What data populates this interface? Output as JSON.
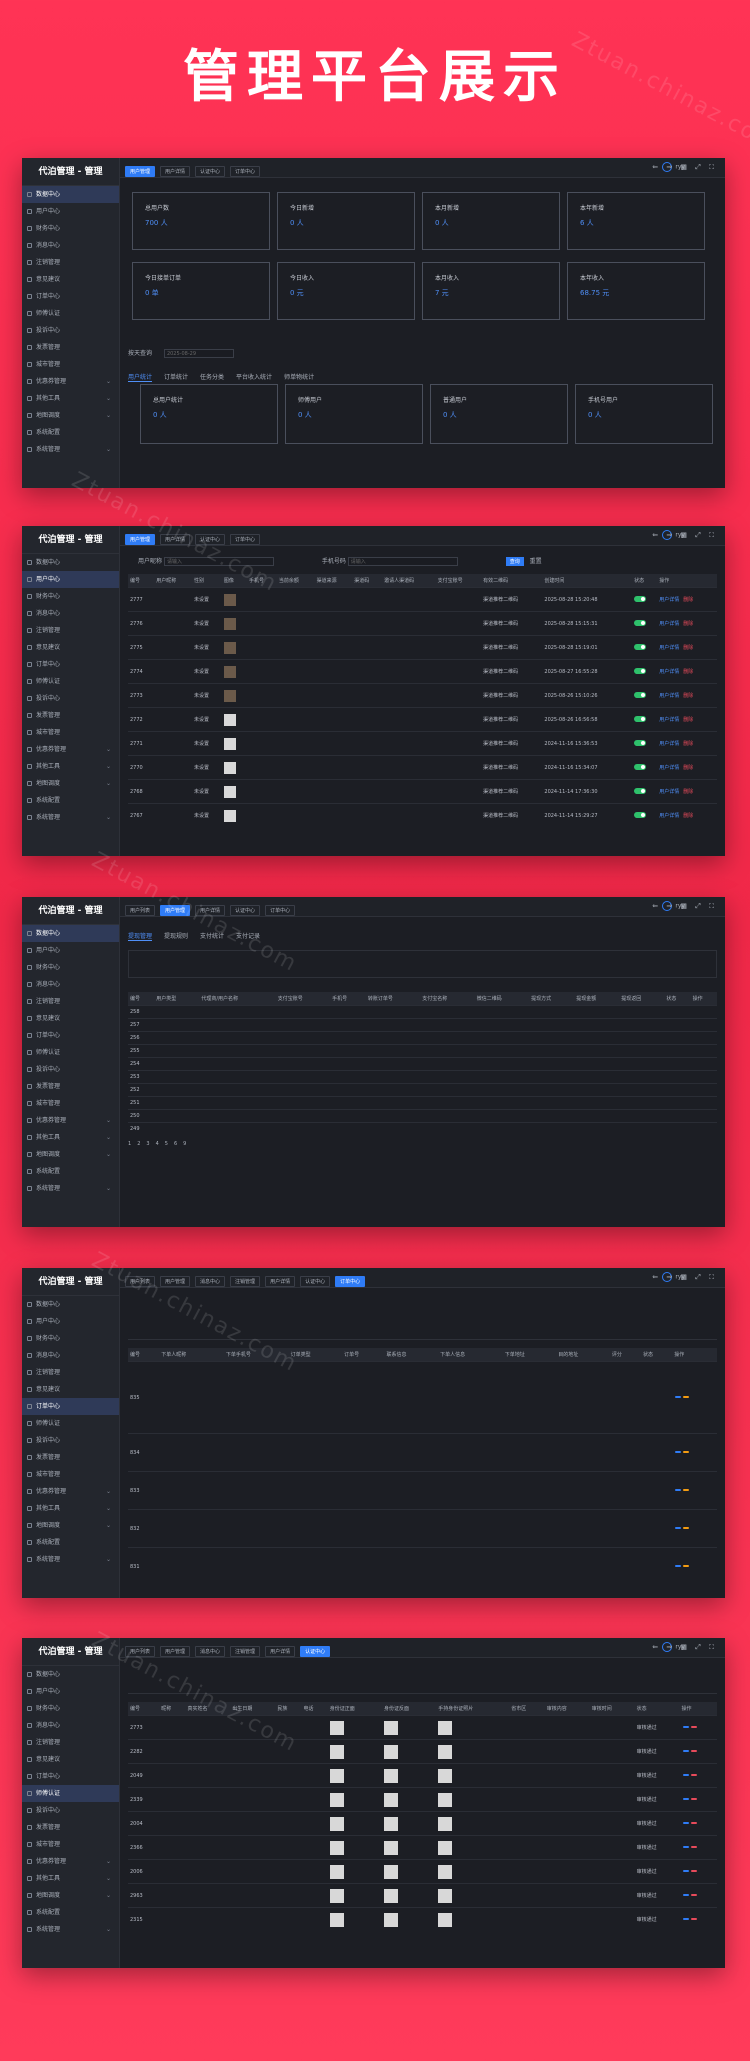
{
  "title": "管理平台展示",
  "logo": "代泊管理 - 管理",
  "user": "ryy",
  "right_icons": "⇐ ⇒ ▦ ⤢ ⛶",
  "sidebar": [
    "数据中心",
    "用户中心",
    "财务中心",
    "消息中心",
    "注销管理",
    "意见建议",
    "订单中心",
    "师傅认证",
    "投诉中心",
    "发票管理",
    "城市管理",
    "优惠券管理",
    "其他工具",
    "地图调度",
    "系统配置",
    "系统管理"
  ],
  "s1": {
    "tabs": [
      "用户管理",
      "用户详情",
      "认证中心",
      "订单中心"
    ],
    "cards": [
      {
        "l": "总用户数",
        "v": "700 人"
      },
      {
        "l": "今日新增",
        "v": "0 人"
      },
      {
        "l": "本月新增",
        "v": "0 人"
      },
      {
        "l": "本年新增",
        "v": "6 人"
      },
      {
        "l": "今日接单订单",
        "v": "0 单"
      },
      {
        "l": "今日收入",
        "v": "0 元"
      },
      {
        "l": "本月收入",
        "v": "7 元"
      },
      {
        "l": "本年收入",
        "v": "68.75 元"
      }
    ],
    "date_label": "按天查询",
    "date": "2025-08-29",
    "subtabs": [
      "用户统计",
      "订单统计",
      "任务分类",
      "平台收入统计",
      "师单物统计"
    ],
    "cards2": [
      {
        "l": "总用户统计",
        "v": "0 人"
      },
      {
        "l": "师傅用户",
        "v": "0 人"
      },
      {
        "l": "普通用户",
        "v": "0 人"
      },
      {
        "l": "手机号用户",
        "v": "0 人"
      }
    ]
  },
  "s2": {
    "tabs": [
      "用户管理",
      "用户详情",
      "认证中心",
      "订单中心"
    ],
    "f1": "用户昵称",
    "f1p": "请输入",
    "f2": "手机号码",
    "f2p": "请输入",
    "search": "查询",
    "reset": "重置",
    "cols": [
      "编号",
      "用户昵称",
      "性别",
      "图像",
      "手机号",
      "当前余额",
      "渠道来源",
      "渠道码",
      "邀请人渠道码",
      "支付宝账号",
      "有效二维码",
      "创建时间",
      "状态",
      "操作"
    ],
    "rows": [
      [
        "2777",
        "未设置",
        "渠道推荐二维码",
        "2025-08-28 15:20:48"
      ],
      [
        "2776",
        "未设置",
        "渠道推荐二维码",
        "2025-08-28 15:15:31"
      ],
      [
        "2775",
        "未设置",
        "渠道推荐二维码",
        "2025-08-28 15:19:01"
      ],
      [
        "2774",
        "未设置",
        "渠道推荐二维码",
        "2025-08-27 16:55:28"
      ],
      [
        "2773",
        "未设置",
        "渠道推荐二维码",
        "2025-08-26 15:10:26"
      ],
      [
        "2772",
        "未设置",
        "渠道推荐二维码",
        "2025-08-26 16:56:58"
      ],
      [
        "2771",
        "未设置",
        "渠道推荐二维码",
        "2024-11-16 15:36:53"
      ],
      [
        "2770",
        "未设置",
        "渠道推荐二维码",
        "2024-11-16 15:34:07"
      ],
      [
        "2768",
        "未设置",
        "渠道推荐二维码",
        "2024-11-14 17:36:30"
      ],
      [
        "2767",
        "未设置",
        "渠道推荐二维码",
        "2024-11-14 15:29:27"
      ]
    ],
    "detail": "用户详情",
    "del": "删除"
  },
  "s3": {
    "tabs": [
      "用户列表",
      "用户管理",
      "用户详情",
      "认证中心",
      "订单中心"
    ],
    "subtabs": [
      "提现管理",
      "提现规则",
      "支付统计",
      "支付记录"
    ],
    "cols": [
      "编号",
      "用户类型",
      "代理商/用户名称",
      "支付宝账号",
      "手机号",
      "转账订单号",
      "支付宝名称",
      "微信二维码",
      "提现方式",
      "提现金额",
      "提现返回",
      "状态",
      "操作"
    ],
    "ids": [
      "258",
      "257",
      "256",
      "255",
      "254",
      "253",
      "252",
      "251",
      "250",
      "249"
    ],
    "page": [
      "1",
      "2",
      "3",
      "4",
      "5",
      "6",
      "9"
    ]
  },
  "s4": {
    "tabs": [
      "用户列表",
      "用户管理",
      "消息中心",
      "注销管理",
      "用户详情",
      "认证中心",
      "订单中心"
    ],
    "cols": [
      "编号",
      "下单人昵称",
      "下单手机号",
      "订单类型",
      "订单号",
      "联系信息",
      "下单人信息",
      "下单地址",
      "目的地址",
      "评分",
      "状态",
      "操作"
    ],
    "ids": [
      "835",
      "834",
      "833",
      "832",
      "831"
    ]
  },
  "s5": {
    "tabs": [
      "用户列表",
      "用户管理",
      "消息中心",
      "注销管理",
      "用户详情",
      "认证中心"
    ],
    "cols": [
      "编号",
      "昵称",
      "真实姓名",
      "出生日期",
      "民族",
      "电话",
      "身份证正面",
      "身份证反面",
      "手持身份证照片",
      "省市区",
      "审核内容",
      "审核时间",
      "状态",
      "操作"
    ],
    "ids": [
      "2773",
      "2282",
      "2049",
      "2339",
      "2004",
      "2366",
      "2006",
      "2963",
      "2315"
    ],
    "status": [
      "审核通过",
      "审核通过",
      "审核通过",
      "审核通过",
      "审核通过",
      "审核通过",
      "审核通过",
      "审核通过",
      "审核通过"
    ]
  }
}
